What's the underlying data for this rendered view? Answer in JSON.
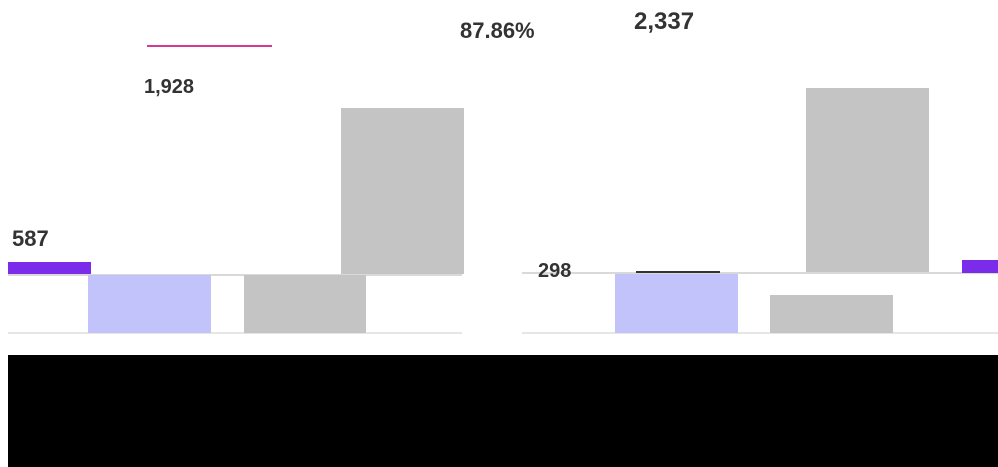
{
  "chart_data": {
    "type": "bar",
    "panels": [
      {
        "categories": [
          "",
          "",
          "",
          ""
        ],
        "values": [
          587,
          0,
          0,
          1928
        ],
        "value_labels": [
          "587",
          "",
          "",
          "1,928"
        ],
        "colors": [
          "#7b2bea",
          "#c3c3fb",
          "#c4c4c4",
          "#c4c4c4"
        ],
        "note": "",
        "note_text": ""
      },
      {
        "categories": [
          "",
          "",
          "",
          ""
        ],
        "values": [
          298,
          0,
          0,
          2337
        ],
        "value_labels": [
          "298",
          "",
          "",
          "2,337"
        ],
        "colors": [
          "#c3c3fb",
          "#c4c4c4",
          "#c4c4c4",
          "#7b2bea"
        ],
        "note_text": "87.86%"
      }
    ]
  },
  "labels": {
    "left_value": "587",
    "left_top": "1,928",
    "right_top": "2,337",
    "right_small": "298",
    "percent": "87.86%"
  }
}
